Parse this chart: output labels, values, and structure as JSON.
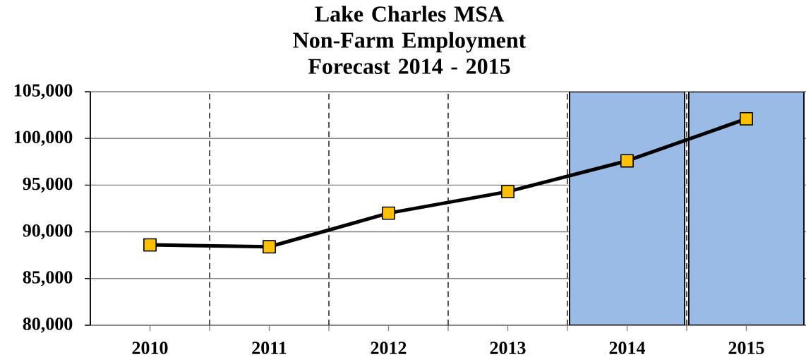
{
  "chart_data": {
    "type": "line",
    "title": "Lake Charles MSA Non-Farm Employment Forecast 2014 - 2015",
    "categories": [
      "2010",
      "2011",
      "2012",
      "2013",
      "2014",
      "2015"
    ],
    "series": [
      {
        "type": "bar",
        "color": "#99bbe6",
        "values": [
          null,
          null,
          null,
          null,
          105000,
          105000
        ]
      },
      {
        "color": "#000000",
        "colors": [
          "#ffc000",
          "#ffc000",
          "#ffc000",
          "#ffc000",
          "#ffc000",
          "#ffc000"
        ],
        "values": [
          88600,
          88400,
          92000,
          94300,
          97600,
          102100
        ]
      }
    ],
    "ylim": [
      80000,
      105000
    ],
    "yticks": [
      {
        "value": 80000,
        "label": "80,000"
      },
      {
        "value": 85000,
        "label": "85,000"
      },
      {
        "value": 90000,
        "label": "90,000"
      },
      {
        "value": 95000,
        "label": "95,000"
      },
      {
        "value": 100000,
        "label": "100,000"
      },
      {
        "value": 105000,
        "label": "105,000"
      }
    ],
    "grid": true,
    "marker": "square",
    "line_style": "solid"
  }
}
